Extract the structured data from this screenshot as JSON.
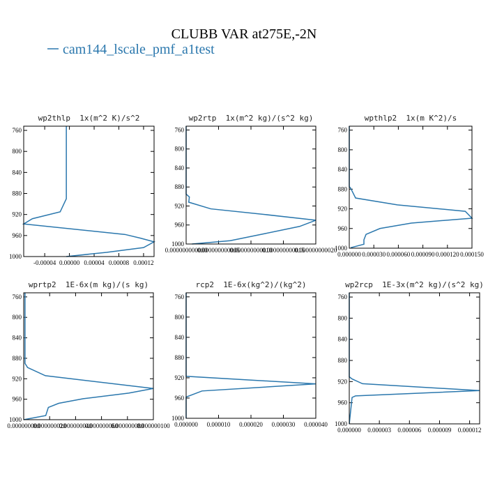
{
  "title": "CLUBB VAR at275E,-2N",
  "legend": {
    "name": "cam144_lscale_pmf_a1test",
    "color": "#2a77ad"
  },
  "chart_data": [
    {
      "type": "line",
      "title": "wp2thlp  1x(m^2 K)/s^2",
      "color": "#2a77ad",
      "values": [
        -5e-06,
        -5e-06,
        -7e-06,
        -1.5e-05,
        -6e-05,
        -7.4e-05,
        9e-05,
        0.000115,
        0.000137,
        0.00012,
        6e-05,
        -5e-06
      ],
      "levels": [
        752,
        890,
        895,
        915,
        928,
        938,
        958,
        965,
        972,
        983,
        992,
        1000
      ],
      "xlim": [
        -7.4e-05,
        0.000137
      ],
      "ylim": [
        1000,
        752
      ],
      "xticks": [
        {
          "value": -4e-05,
          "label": "-0.00004"
        },
        {
          "value": 0,
          "label": "0.00000"
        },
        {
          "value": 4e-05,
          "label": "0.00004"
        },
        {
          "value": 8e-05,
          "label": "0.00008"
        },
        {
          "value": 0.00012,
          "label": "0.00012"
        }
      ],
      "yticks": [
        760,
        800,
        840,
        880,
        920,
        960,
        1000
      ]
    },
    {
      "type": "line",
      "title": "wp2rtp  1x(m^2 kg)/(s^2 kg)",
      "color": "#2a77ad",
      "values": [
        0,
        0,
        5e-13,
        4e-13,
        3.8e-12,
        1.22e-11,
        2e-11,
        1.75e-11,
        1.22e-11,
        6.8e-12,
        9e-13
      ],
      "levels": [
        752,
        895,
        901,
        912,
        926,
        938,
        950,
        963,
        978,
        993,
        1000
      ],
      "xlim": [
        0,
        2e-11
      ],
      "ylim": [
        1000,
        752
      ],
      "xticks": [
        {
          "value": 0,
          "label": "0.000000000000"
        },
        {
          "value": 5e-12,
          "label": "0.000000000005"
        },
        {
          "value": 1e-11,
          "label": "0.000000000010"
        },
        {
          "value": 1.5e-11,
          "label": "0.000000000015"
        },
        {
          "value": 2e-11,
          "label": "0.000000000020"
        }
      ],
      "yticks": [
        760,
        800,
        840,
        880,
        920,
        960,
        1000
      ]
    },
    {
      "type": "line",
      "title": "wpthlp2  1x(m K^2)/s",
      "color": "#2a77ad",
      "values": [
        0,
        0,
        1.7e-06,
        7.7e-06,
        5.88e-05,
        0.0001418,
        0.00015,
        7.59e-05,
        3.75e-05,
        2.05e-05,
        1.79e-05,
        1.79e-05,
        1.7e-06
      ],
      "levels": [
        752,
        875,
        878,
        898,
        912,
        925,
        939,
        949,
        960,
        972,
        983,
        992,
        999
      ],
      "xlim": [
        0,
        0.00015
      ],
      "ylim": [
        1000,
        752
      ],
      "xticks": [
        {
          "value": 0,
          "label": "0.000000"
        },
        {
          "value": 3e-05,
          "label": "0.000030"
        },
        {
          "value": 6e-05,
          "label": "0.000060"
        },
        {
          "value": 9e-05,
          "label": "0.000090"
        },
        {
          "value": 0.00012,
          "label": "0.000120"
        },
        {
          "value": 0.00015,
          "label": "0.000150"
        }
      ],
      "yticks": [
        760,
        800,
        840,
        880,
        920,
        960,
        1000
      ]
    },
    {
      "type": "line",
      "title": "wprtp2  1E-6x(m kg)/(s kg)",
      "color": "#2a77ad",
      "values": [
        1e-09,
        1e-09,
        3e-09,
        1.67e-08,
        1e-07,
        8.1e-08,
        4.6e-08,
        2.7e-08,
        1.9e-08,
        1.7e-08,
        0
      ],
      "levels": [
        752,
        890,
        898,
        914,
        939,
        948,
        959,
        968,
        976,
        992,
        1000
      ],
      "xlim": [
        0,
        1e-07
      ],
      "ylim": [
        1000,
        752
      ],
      "xticks": [
        {
          "value": 0,
          "label": "0.000000000"
        },
        {
          "value": 2e-08,
          "label": "0.000000020"
        },
        {
          "value": 4e-08,
          "label": "0.000000040"
        },
        {
          "value": 6e-08,
          "label": "0.000000060"
        },
        {
          "value": 8e-08,
          "label": "0.000000080"
        },
        {
          "value": 1e-07,
          "label": "0.000000100"
        }
      ],
      "yticks": [
        760,
        800,
        840,
        880,
        920,
        960,
        1000
      ]
    },
    {
      "type": "line",
      "title": "rcp2  1E-6x(kg^2)/(kg^2)",
      "color": "#2a77ad",
      "values": [
        0,
        0,
        4e-05,
        4.9e-06,
        0,
        0
      ],
      "levels": [
        752,
        917,
        932,
        946,
        958,
        1000
      ],
      "xlim": [
        0,
        4e-05
      ],
      "ylim": [
        1000,
        752
      ],
      "xticks": [
        {
          "value": 0,
          "label": "0.000000"
        },
        {
          "value": 1e-05,
          "label": "0.000010"
        },
        {
          "value": 2e-05,
          "label": "0.000020"
        },
        {
          "value": 3e-05,
          "label": "0.000030"
        },
        {
          "value": 4e-05,
          "label": "0.000040"
        }
      ],
      "yticks": [
        760,
        800,
        840,
        880,
        920,
        960,
        1000
      ]
    },
    {
      "type": "line",
      "title": "wp2rcp  1E-3x(m^2 kg)/(s^2 kg)",
      "color": "#2a77ad",
      "values": [
        0,
        0,
        2.8e-07,
        1.32e-06,
        1.3e-05,
        6.3e-07,
        2.8e-07,
        0
      ],
      "levels": [
        752,
        911,
        915,
        924,
        937,
        947,
        950,
        1000
      ],
      "xlim": [
        0,
        1.3e-05
      ],
      "ylim": [
        1000,
        752
      ],
      "xticks": [
        {
          "value": 0,
          "label": "0.000000"
        },
        {
          "value": 3e-06,
          "label": "0.000003"
        },
        {
          "value": 6e-06,
          "label": "0.000006"
        },
        {
          "value": 9e-06,
          "label": "0.000009"
        },
        {
          "value": 1.2e-05,
          "label": "0.000012"
        }
      ],
      "yticks": [
        760,
        800,
        840,
        880,
        920,
        960,
        1000
      ]
    }
  ]
}
